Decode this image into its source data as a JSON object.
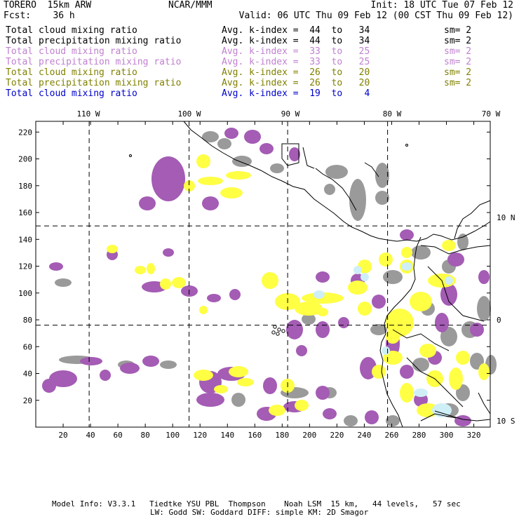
{
  "header": {
    "model": "TORERO  15km ARW",
    "center": "NCAR/MMM",
    "init": "Init: 18 UTC Tue 07 Feb 12",
    "fcst": "Fcst:    36 h",
    "valid": "Valid: 06 UTC Thu 09 Feb 12 (00 CST Thu 09 Feb 12)"
  },
  "legend": [
    {
      "field": "Total cloud mixing ratio",
      "range": "Avg. k-index =  44  to   34",
      "sm": "sm= 2",
      "color": "#000000"
    },
    {
      "field": "Total precipitation mixing ratio",
      "range": "Avg. k-index =  44  to   34",
      "sm": "sm= 2",
      "color": "#000000"
    },
    {
      "field": "Total cloud mixing ratio",
      "range": "Avg. k-index =  33  to   25",
      "sm": "sm= 2",
      "color": "#c080d0"
    },
    {
      "field": "Total precipitation mixing ratio",
      "range": "Avg. k-index =  33  to   25",
      "sm": "sm= 2",
      "color": "#c080d0"
    },
    {
      "field": "Total cloud mixing ratio",
      "range": "Avg. k-index =  26  to   20",
      "sm": "sm= 2",
      "color": "#808000"
    },
    {
      "field": "Total precipitation mixing ratio",
      "range": "Avg. k-index =  26  to   20",
      "sm": "sm= 2",
      "color": "#808000"
    },
    {
      "field": "Total cloud mixing ratio",
      "range": "Avg. k-index =  19  to    4",
      "sm": "",
      "color": "#0000cc"
    }
  ],
  "map": {
    "lon_labels": [
      "110 W",
      "100 W",
      "90 W",
      "80 W",
      "70 W"
    ],
    "lat_labels": [
      "10 N",
      "0",
      "10 S"
    ],
    "x_ticks": [
      "20",
      "40",
      "60",
      "80",
      "100",
      "120",
      "140",
      "160",
      "180",
      "200",
      "220",
      "240",
      "260",
      "280",
      "300",
      "320"
    ],
    "y_ticks": [
      "220",
      "200",
      "180",
      "160",
      "140",
      "120",
      "100",
      "80",
      "60",
      "40",
      "20"
    ],
    "x_range": [
      0,
      332
    ],
    "y_range": [
      0,
      228
    ],
    "colors": {
      "gray": "#9a9a9a",
      "purple": "#a45cb4",
      "yellow": "#ffff44",
      "cyan": "#cfeff6"
    }
  },
  "footer": {
    "line1": "Model Info: V3.3.1   Tiedtke YSU PBL  Thompson    Noah LSM  15 km,   44 levels,   57 sec",
    "line2": "LW: Godd SW: Goddard DIFF: simple KM: 2D Smagor"
  }
}
